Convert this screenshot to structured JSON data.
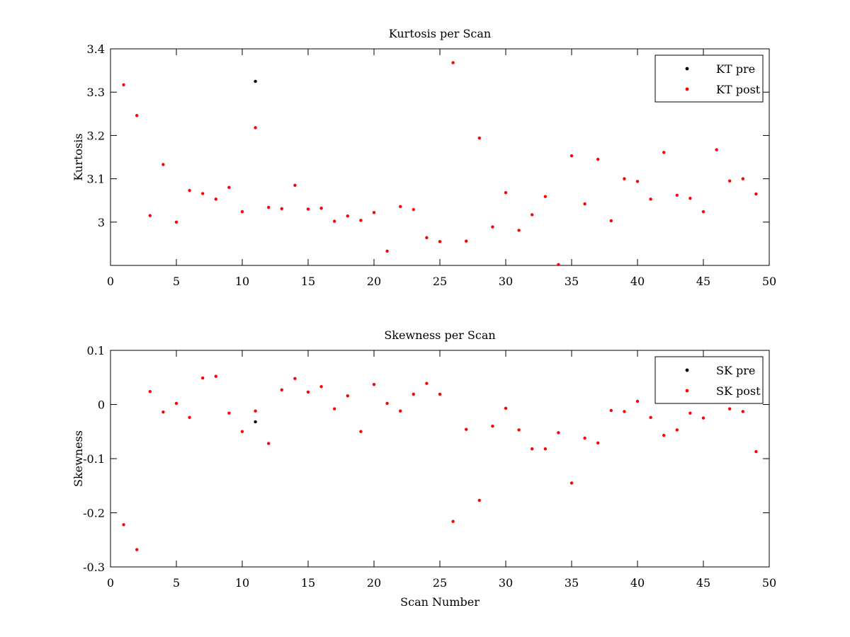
{
  "colors": {
    "pre": "#000000",
    "post": "#ff0000",
    "axes": "#000000",
    "background": "#ffffff"
  },
  "chart_data": [
    {
      "type": "scatter",
      "title": "Kurtosis per Scan",
      "xlabel": "",
      "ylabel": "Kurtosis",
      "xlim": [
        0,
        50
      ],
      "ylim": [
        2.9,
        3.4
      ],
      "xticks": [
        0,
        5,
        10,
        15,
        20,
        25,
        30,
        35,
        40,
        45,
        50
      ],
      "yticks": [
        3,
        3.1,
        3.2,
        3.3,
        3.4
      ],
      "grid": false,
      "legend_position": "top-right",
      "series": [
        {
          "name": "KT pre",
          "color": "#000000",
          "x": [
            11
          ],
          "y": [
            3.325
          ]
        },
        {
          "name": "KT post",
          "color": "#ff0000",
          "x": [
            1,
            2,
            3,
            4,
            5,
            6,
            7,
            8,
            9,
            10,
            11,
            12,
            13,
            14,
            15,
            16,
            17,
            18,
            19,
            20,
            21,
            22,
            23,
            24,
            25,
            26,
            27,
            28,
            29,
            30,
            31,
            32,
            33,
            34,
            35,
            36,
            37,
            38,
            39,
            40,
            41,
            42,
            43,
            44,
            45,
            46,
            47,
            48,
            49
          ],
          "y": [
            3.317,
            3.246,
            3.015,
            3.133,
            3.0,
            3.073,
            3.066,
            3.053,
            3.08,
            3.024,
            3.218,
            3.034,
            3.031,
            3.085,
            3.03,
            3.032,
            3.002,
            3.014,
            3.004,
            3.022,
            2.933,
            3.036,
            3.029,
            2.964,
            2.955,
            3.368,
            2.956,
            3.194,
            2.989,
            3.068,
            2.981,
            3.017,
            3.059,
            2.902,
            3.153,
            3.042,
            3.145,
            3.003,
            3.1,
            3.094,
            3.053,
            3.161,
            3.062,
            3.055,
            3.024,
            3.167,
            3.095,
            3.1,
            3.065
          ]
        }
      ]
    },
    {
      "type": "scatter",
      "title": "Skewness per Scan",
      "xlabel": "Scan Number",
      "ylabel": "Skewness",
      "xlim": [
        0,
        50
      ],
      "ylim": [
        -0.3,
        0.1
      ],
      "xticks": [
        0,
        5,
        10,
        15,
        20,
        25,
        30,
        35,
        40,
        45,
        50
      ],
      "yticks": [
        -0.3,
        -0.2,
        -0.1,
        0,
        0.1
      ],
      "grid": false,
      "legend_position": "top-right",
      "series": [
        {
          "name": "SK pre",
          "color": "#000000",
          "x": [
            11
          ],
          "y": [
            -0.032
          ]
        },
        {
          "name": "SK post",
          "color": "#ff0000",
          "x": [
            1,
            2,
            3,
            4,
            5,
            6,
            7,
            8,
            9,
            10,
            11,
            12,
            13,
            14,
            15,
            16,
            17,
            18,
            19,
            20,
            21,
            22,
            23,
            24,
            25,
            26,
            27,
            28,
            29,
            30,
            31,
            32,
            33,
            34,
            35,
            36,
            37,
            38,
            39,
            40,
            41,
            42,
            43,
            44,
            45,
            46,
            47,
            48,
            49
          ],
          "y": [
            -0.222,
            -0.268,
            0.024,
            -0.014,
            0.002,
            -0.024,
            0.049,
            0.052,
            -0.016,
            -0.05,
            -0.012,
            -0.072,
            0.027,
            0.048,
            0.023,
            0.033,
            -0.008,
            0.016,
            -0.05,
            0.037,
            0.002,
            -0.012,
            0.019,
            0.039,
            0.019,
            -0.216,
            -0.046,
            -0.177,
            -0.04,
            -0.007,
            -0.047,
            -0.082,
            -0.082,
            -0.052,
            -0.145,
            -0.062,
            -0.071,
            -0.011,
            -0.013,
            0.006,
            -0.024,
            -0.057,
            -0.047,
            -0.016,
            -0.025,
            0.048,
            -0.008,
            -0.013,
            -0.087
          ]
        }
      ]
    }
  ]
}
